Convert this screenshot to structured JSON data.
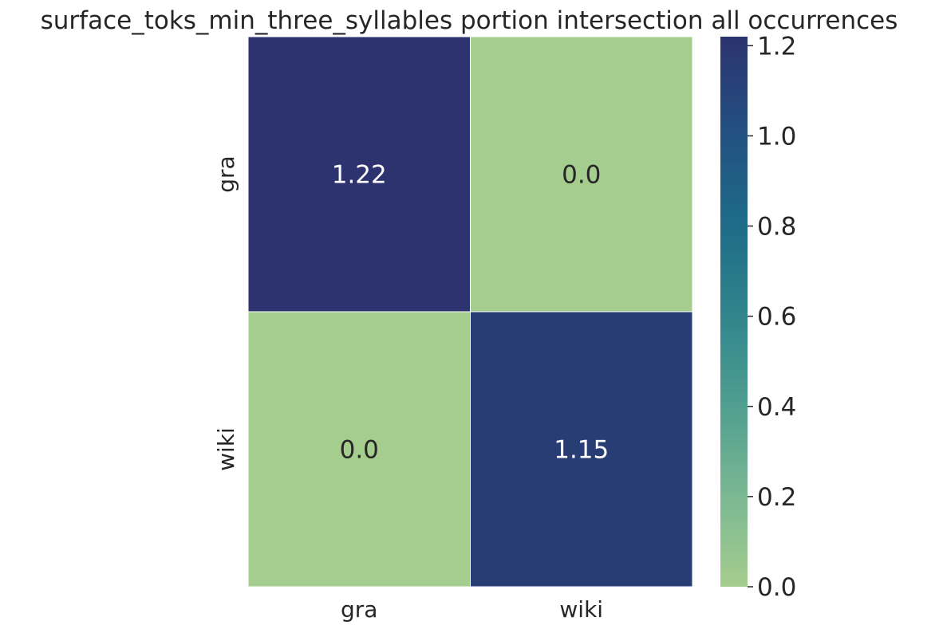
{
  "chart_data": {
    "type": "heatmap",
    "title": "surface_toks_min_three_syllables portion intersection all occurrences",
    "x_categories": [
      "gra",
      "wiki"
    ],
    "y_categories": [
      "gra",
      "wiki"
    ],
    "values": [
      [
        1.22,
        0.0
      ],
      [
        0.0,
        1.15
      ]
    ],
    "annotations": [
      [
        "1.22",
        "0.0"
      ],
      [
        "0.0",
        "1.15"
      ]
    ],
    "colorbar": {
      "range": [
        0.0,
        1.22
      ],
      "ticks": [
        0.0,
        0.2,
        0.4,
        0.6,
        0.8,
        1.0,
        1.2
      ],
      "tick_labels": [
        "0.0",
        "0.2",
        "0.4",
        "0.6",
        "0.8",
        "1.0",
        "1.2"
      ]
    },
    "colormap": [
      "#a5cd8e",
      "#7ab792",
      "#4f9e90",
      "#2f848c",
      "#1e6a88",
      "#234f80",
      "#2c336f"
    ],
    "cell_border_color": "#ffffff",
    "annotation_light_color": "#ffffff",
    "annotation_dark_color": "#262626"
  }
}
